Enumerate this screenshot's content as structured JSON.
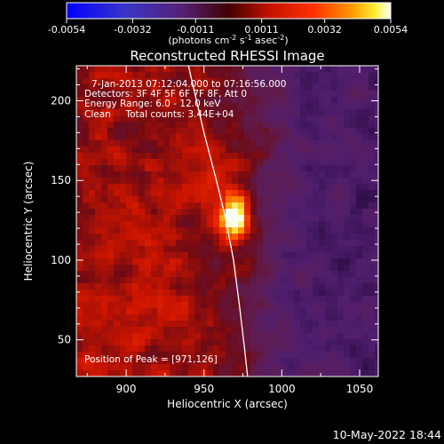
{
  "colorbar": {
    "ticks": [
      "-0.0054",
      "-0.0032",
      "-0.0011",
      "0.0011",
      "0.0032",
      "0.0054"
    ],
    "tick_values": [
      -0.0054,
      -0.0032,
      -0.0011,
      0.0011,
      0.0032,
      0.0054
    ],
    "units_pre": "(photons cm",
    "units_exp1": "-2",
    "units_mid": " s",
    "units_exp2": "-1",
    "units_mid2": " asec",
    "units_exp3": "-2",
    "units_post": ")"
  },
  "chart_data": {
    "type": "heatmap",
    "title": "Reconstructed RHESSI Image",
    "xlabel": "Heliocentric X (arcsec)",
    "ylabel": "Heliocentric Y (arcsec)",
    "xlim": [
      868,
      1062
    ],
    "ylim": [
      27,
      222
    ],
    "x_ticks": [
      900,
      950,
      1000,
      1050
    ],
    "y_ticks": [
      50,
      100,
      150,
      200
    ],
    "annotations": [
      "7-Jan-2013 07:12:04.000 to 07:16:56.000",
      "Detectors: 3F 4F 5F 6F 7F 8F, Att 0",
      "Energy Range: 6.0 - 12.0 keV",
      "Clean     Total counts: 3.44E+04"
    ],
    "peak_label": "Position of Peak = [971,126]",
    "peak": [
      971,
      126
    ],
    "value_range": [
      -0.0054,
      0.0054
    ],
    "limb_curve": [
      [
        940,
        222
      ],
      [
        950,
        180
      ],
      [
        958,
        150
      ],
      [
        964,
        126
      ],
      [
        969,
        100
      ],
      [
        973,
        70
      ],
      [
        976,
        45
      ],
      [
        978,
        27
      ]
    ]
  },
  "footer": {
    "date": "10-May-2022 18:44"
  },
  "colors": {
    "colorbar": [
      "#0000ff",
      "#4a2aa8",
      "#5a1f7a",
      "#b01010",
      "#ff2a00",
      "#ff9a00",
      "#ffe000",
      "#ffffff"
    ]
  }
}
